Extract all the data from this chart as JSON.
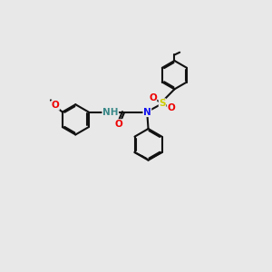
{
  "bg": "#e8e8e8",
  "bond_color": "#111111",
  "lw": 1.5,
  "dbo": 0.06,
  "atom_colors": {
    "O": "#ee0000",
    "N": "#1111ee",
    "S": "#cccc00",
    "H": "#3a8888"
  },
  "fs": 7.5
}
